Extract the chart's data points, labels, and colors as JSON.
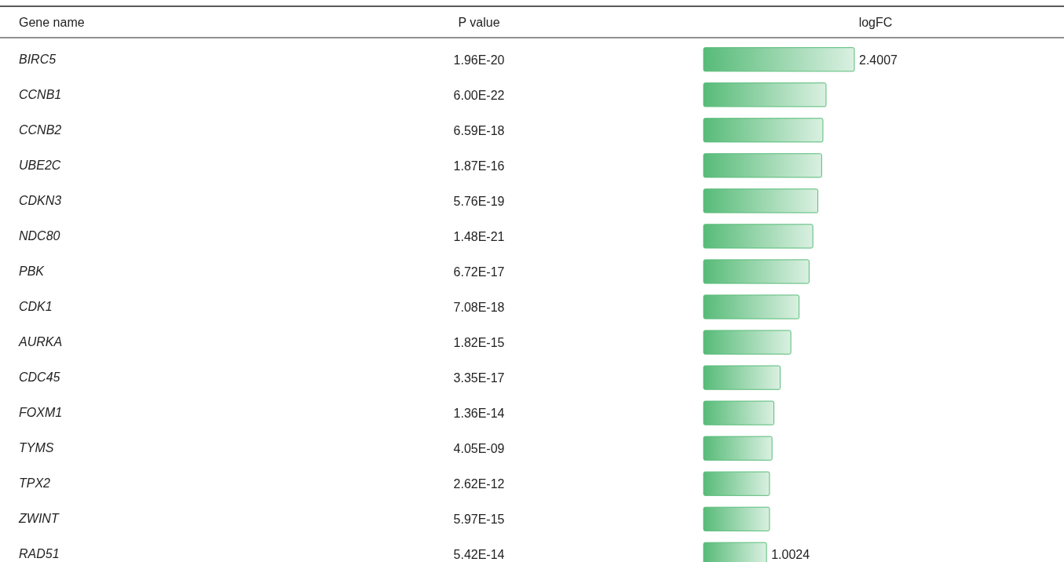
{
  "chart_data": {
    "type": "bar",
    "orientation": "horizontal",
    "ylabel": "Gene name",
    "xlabel": "logFC",
    "categories": [
      "BIRC5",
      "CCNB1",
      "CCNB2",
      "UBE2C",
      "CDKN3",
      "NDC80",
      "PBK",
      "CDK1",
      "AURKA",
      "CDC45",
      "FOXM1",
      "TYMS",
      "TPX2",
      "ZWINT",
      "RAD51"
    ],
    "values": [
      2.4007,
      1.95,
      1.9,
      1.88,
      1.82,
      1.74,
      1.68,
      1.52,
      1.39,
      1.22,
      1.12,
      1.09,
      1.05,
      1.05,
      1.0024
    ],
    "value_labels": [
      "2.4007",
      null,
      null,
      null,
      null,
      null,
      null,
      null,
      null,
      null,
      null,
      null,
      null,
      null,
      "1.0024"
    ],
    "color": "#57bb78",
    "tick_labels": "y",
    "annotations": [
      "P value",
      "1.96E-20",
      "6.00E-22",
      "6.59E-18",
      "1.87E-16",
      "5.76E-19",
      "1.48E-21",
      "6.72E-17",
      "7.08E-18",
      "1.82E-15",
      "3.35E-17",
      "1.36E-14",
      "4.05E-09",
      "2.62E-12",
      "5.97E-15",
      "5.42E-14"
    ]
  }
}
